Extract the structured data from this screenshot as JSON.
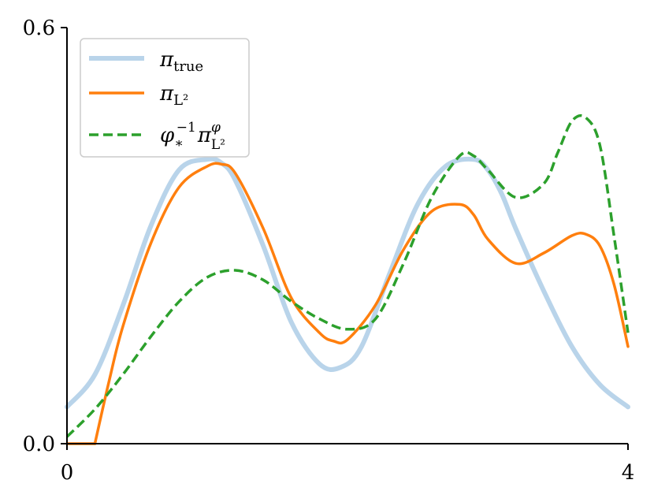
{
  "chart_data": {
    "type": "line",
    "xlim": [
      0,
      4
    ],
    "ylim": [
      0,
      0.6
    ],
    "x_ticks": [
      "0",
      "4"
    ],
    "y_ticks": [
      "0.0",
      "0.6"
    ],
    "grid": false,
    "legend_position": "top-left",
    "colors": {
      "true": "#b9d4ea",
      "l2": "#ff7f0e",
      "pullback": "#2ca02c"
    },
    "series": [
      {
        "key": "true",
        "name": "π_true",
        "style": "solid-thick",
        "x": [
          0.0,
          0.2,
          0.4,
          0.6,
          0.8,
          1.0,
          1.1,
          1.2,
          1.4,
          1.6,
          1.8,
          1.95,
          2.1,
          2.3,
          2.5,
          2.7,
          2.9,
          3.0,
          3.1,
          3.2,
          3.4,
          3.6,
          3.8,
          4.0
        ],
        "y": [
          0.053,
          0.1,
          0.2,
          0.315,
          0.395,
          0.41,
          0.405,
          0.38,
          0.285,
          0.175,
          0.115,
          0.11,
          0.14,
          0.245,
          0.345,
          0.4,
          0.41,
          0.395,
          0.36,
          0.31,
          0.22,
          0.14,
          0.085,
          0.053
        ]
      },
      {
        "key": "l2",
        "name": "π_L²",
        "style": "solid",
        "x": [
          0.0,
          0.2,
          0.21,
          0.3,
          0.4,
          0.6,
          0.8,
          1.0,
          1.1,
          1.2,
          1.4,
          1.6,
          1.8,
          1.9,
          2.0,
          2.2,
          2.4,
          2.6,
          2.8,
          2.9,
          3.0,
          3.2,
          3.4,
          3.6,
          3.7,
          3.8,
          3.9,
          4.0
        ],
        "y": [
          0.0,
          0.0,
          0.01,
          0.09,
          0.17,
          0.29,
          0.37,
          0.4,
          0.403,
          0.39,
          0.31,
          0.21,
          0.16,
          0.148,
          0.15,
          0.2,
          0.28,
          0.335,
          0.345,
          0.33,
          0.295,
          0.26,
          0.275,
          0.3,
          0.302,
          0.285,
          0.23,
          0.14
        ]
      },
      {
        "key": "pullback",
        "name": "φ_*^{-1} π_L²^φ",
        "style": "dashed",
        "x": [
          0.0,
          0.2,
          0.4,
          0.6,
          0.8,
          1.0,
          1.2,
          1.4,
          1.6,
          1.8,
          2.0,
          2.2,
          2.4,
          2.6,
          2.8,
          2.9,
          3.0,
          3.2,
          3.4,
          3.5,
          3.6,
          3.7,
          3.8,
          3.9,
          4.0
        ],
        "y": [
          0.01,
          0.05,
          0.1,
          0.155,
          0.205,
          0.24,
          0.25,
          0.236,
          0.205,
          0.18,
          0.165,
          0.18,
          0.26,
          0.355,
          0.415,
          0.415,
          0.395,
          0.355,
          0.375,
          0.42,
          0.465,
          0.47,
          0.43,
          0.3,
          0.16
        ]
      }
    ]
  }
}
